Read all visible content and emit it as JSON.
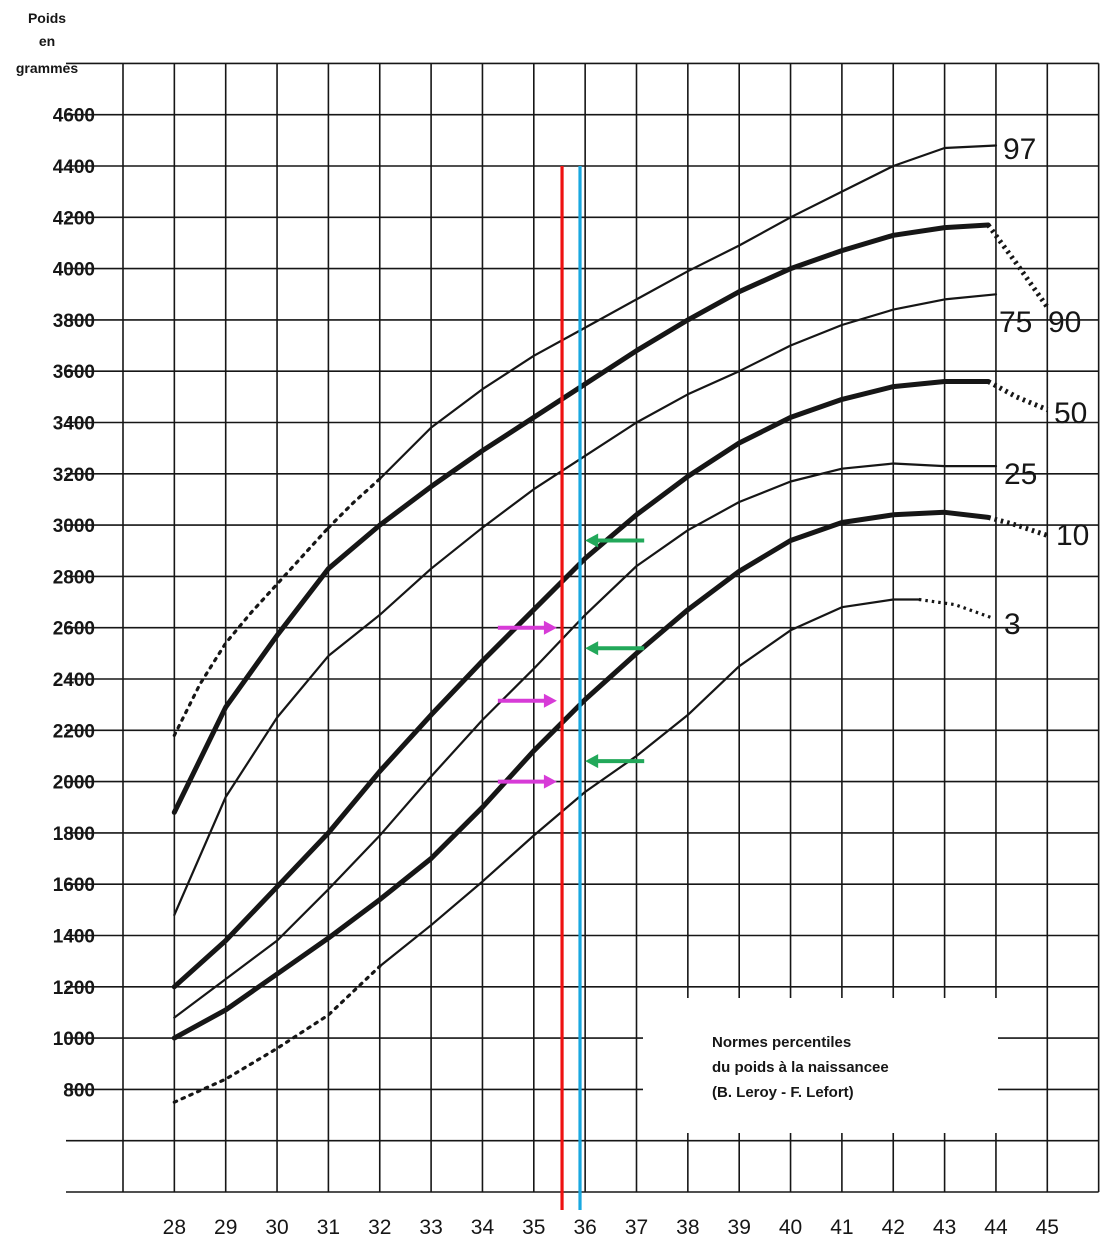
{
  "chart_data": {
    "type": "line",
    "ylabel": [
      "Poids",
      "en",
      "grammes"
    ],
    "xlabel": "",
    "x_ticks": [
      28,
      29,
      30,
      31,
      32,
      33,
      34,
      35,
      36,
      37,
      38,
      39,
      40,
      41,
      42,
      43,
      44,
      45
    ],
    "y_ticks": [
      800,
      1000,
      1200,
      1400,
      1600,
      1800,
      2000,
      2200,
      2400,
      2600,
      2800,
      3000,
      3200,
      3400,
      3600,
      3800,
      4000,
      4200,
      4400,
      4600
    ],
    "xlim": [
      27,
      46
    ],
    "ylim": [
      400,
      4800
    ],
    "grid": true,
    "annotation": [
      "Normes percentiles",
      "du poids à la naissancee",
      "(B. Leroy - F. Lefort)"
    ],
    "series": [
      {
        "name": "97",
        "weight": "thin",
        "x": [
          32,
          33,
          34,
          35,
          36,
          37,
          38,
          39,
          40,
          41,
          42,
          43,
          44
        ],
        "y": [
          3180,
          3380,
          3530,
          3660,
          3770,
          3880,
          3990,
          4090,
          4200,
          4300,
          4400,
          4470,
          4480
        ],
        "dotted_start": {
          "x": [
            31,
            31.5,
            32
          ],
          "y": [
            2990,
            3090,
            3180
          ]
        }
      },
      {
        "name": "90",
        "weight": "thick",
        "x": [
          28,
          29,
          30,
          31,
          32,
          33,
          34,
          35,
          36,
          37,
          38,
          39,
          40,
          41,
          42,
          43,
          43.85
        ],
        "y": [
          1880,
          2290,
          2570,
          2830,
          3000,
          3150,
          3290,
          3420,
          3550,
          3680,
          3800,
          3910,
          4000,
          4070,
          4130,
          4160,
          4170
        ],
        "dotted_start": {
          "x": [
            28,
            28.5,
            29,
            29.5,
            30,
            30.5,
            31
          ],
          "y": [
            2180,
            2380,
            2540,
            2660,
            2770,
            2880,
            2990
          ]
        },
        "dotted_end": {
          "x": [
            43.85,
            44.4,
            45
          ],
          "y": [
            4170,
            4020,
            3850
          ]
        }
      },
      {
        "name": "75",
        "weight": "thin",
        "x": [
          28,
          29,
          30,
          31,
          32,
          33,
          34,
          35,
          36,
          37,
          38,
          39,
          40,
          41,
          42,
          43,
          44
        ],
        "y": [
          1480,
          1940,
          2250,
          2490,
          2650,
          2830,
          2990,
          3140,
          3270,
          3400,
          3510,
          3600,
          3700,
          3780,
          3840,
          3880,
          3900
        ]
      },
      {
        "name": "50",
        "weight": "thick",
        "x": [
          28,
          29,
          30,
          31,
          32,
          33,
          34,
          35,
          36,
          37,
          38,
          39,
          40,
          41,
          42,
          43,
          43.85
        ],
        "y": [
          1200,
          1380,
          1590,
          1800,
          2040,
          2260,
          2470,
          2670,
          2870,
          3040,
          3190,
          3320,
          3420,
          3490,
          3540,
          3560,
          3560
        ],
        "dotted_end": {
          "x": [
            43.85,
            44.4,
            45
          ],
          "y": [
            3560,
            3500,
            3450
          ]
        }
      },
      {
        "name": "25",
        "weight": "thin",
        "x": [
          28,
          29,
          30,
          31,
          32,
          33,
          34,
          35,
          36,
          37,
          38,
          39,
          40,
          41,
          42,
          43,
          44
        ],
        "y": [
          1080,
          1230,
          1380,
          1580,
          1790,
          2020,
          2240,
          2440,
          2650,
          2840,
          2980,
          3090,
          3170,
          3220,
          3240,
          3230,
          3230
        ]
      },
      {
        "name": "10",
        "weight": "thick",
        "x": [
          28,
          29,
          30,
          31,
          32,
          33,
          34,
          35,
          36,
          37,
          38,
          39,
          40,
          41,
          42,
          43,
          43.85
        ],
        "y": [
          1000,
          1110,
          1250,
          1390,
          1540,
          1700,
          1900,
          2120,
          2320,
          2500,
          2670,
          2820,
          2940,
          3010,
          3040,
          3050,
          3030
        ],
        "dotted_end": {
          "x": [
            43.85,
            44.4,
            45
          ],
          "y": [
            3030,
            3000,
            2960
          ]
        }
      },
      {
        "name": "3",
        "weight": "thin",
        "x": [
          32,
          33,
          34,
          35,
          36,
          37,
          38,
          39,
          40,
          41,
          42,
          42.5
        ],
        "y": [
          1280,
          1440,
          1610,
          1790,
          1960,
          2100,
          2260,
          2450,
          2590,
          2680,
          2710,
          2710
        ],
        "dotted_start": {
          "x": [
            28,
            29,
            30,
            31,
            32
          ],
          "y": [
            750,
            840,
            960,
            1090,
            1280
          ]
        },
        "dotted_end": {
          "x": [
            42.5,
            43.2,
            43.9
          ],
          "y": [
            2710,
            2690,
            2640
          ]
        }
      }
    ],
    "end_labels": [
      "97",
      "75",
      "90",
      "50",
      "25",
      "10",
      "3"
    ],
    "reference_lines": [
      {
        "x": 35.55,
        "y": [
          0,
          4400
        ],
        "color": "#ee1111"
      },
      {
        "x": 35.9,
        "y": [
          0,
          4400
        ],
        "color": "#19a8e0"
      }
    ],
    "markers": [
      {
        "direction": "right",
        "color": "#d73bd7",
        "y": 2600,
        "x_from": 34.3,
        "x_to": 35.45
      },
      {
        "direction": "right",
        "color": "#d73bd7",
        "y": 2315,
        "x_from": 34.3,
        "x_to": 35.45
      },
      {
        "direction": "right",
        "color": "#d73bd7",
        "y": 2000,
        "x_from": 34.3,
        "x_to": 35.45
      },
      {
        "direction": "left",
        "color": "#22a85a",
        "y": 2940,
        "x_from": 37.15,
        "x_to": 36.0
      },
      {
        "direction": "left",
        "color": "#22a85a",
        "y": 2520,
        "x_from": 37.15,
        "x_to": 36.0
      },
      {
        "direction": "left",
        "color": "#22a85a",
        "y": 2080,
        "x_from": 37.15,
        "x_to": 36.0
      }
    ]
  }
}
